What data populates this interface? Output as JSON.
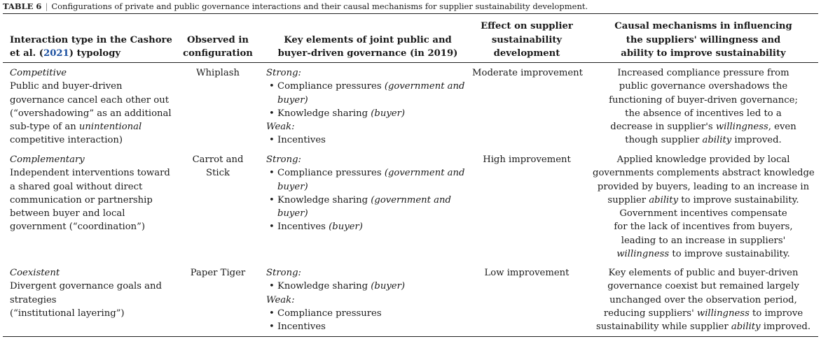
{
  "caption": {
    "label": "TABLE 6",
    "separator": "|",
    "text": "Configurations of private and public governance interactions and their causal mechanisms for supplier sustainability development."
  },
  "headers": {
    "c1": [
      "Interaction type in the Cashore",
      "et al. (",
      "2021",
      ") typology"
    ],
    "c2": [
      "Observed in",
      "configuration"
    ],
    "c3": [
      "Key elements of joint public and",
      "buyer-driven governance (in 2019)"
    ],
    "c4": [
      "Effect on supplier",
      "sustainability",
      "development"
    ],
    "c5": [
      "Causal mechanisms in influencing",
      "the suppliers' willingness and",
      "ability to improve sustainability"
    ]
  },
  "rows": [
    {
      "type_name": "Competitive",
      "type_lines": [
        "Public and buyer-driven",
        "governance cancel each other out",
        "(“overshadowing” as an additional",
        "sub-type of an ",
        "unintentional",
        "competitive interaction)"
      ],
      "configuration": [
        "Whiplash"
      ],
      "strong_label": "Strong",
      "weak_label": "Weak",
      "elements": {
        "compliance": "Compliance pressures",
        "compliance_note_a": "(government and",
        "compliance_note_b": "buyer)",
        "knowledge": "Knowledge sharing",
        "knowledge_note": "(buyer)",
        "incentives": "Incentives"
      },
      "effect": "Moderate improvement",
      "mechanism": [
        "Increased compliance pressure from",
        "public governance overshadows the",
        "functioning of buyer-driven governance;",
        "the absence of incentives led to a",
        "decrease in supplier's ",
        "willingness",
        ", even",
        "though supplier ",
        "ability",
        " improved."
      ]
    },
    {
      "type_name": "Complementary",
      "type_lines": [
        "Independent interventions toward",
        "a shared goal without direct",
        "communication or partnership",
        "between buyer and local",
        "government (“coordination”)"
      ],
      "configuration": [
        "Carrot and",
        "Stick"
      ],
      "strong_label": "Strong",
      "elements": {
        "compliance": "Compliance pressures",
        "compliance_note_a": "(government and",
        "compliance_note_b": "buyer)",
        "knowledge": "Knowledge sharing",
        "knowledge_note_a": "(government and",
        "knowledge_note_b": "buyer)",
        "incentives": "Incentives",
        "incentives_note": "(buyer)"
      },
      "effect": "High improvement",
      "mechanism": [
        "Applied knowledge provided by local",
        "governments complements abstract knowledge",
        "provided by buyers, leading to an increase in",
        "supplier ",
        "ability",
        " to improve sustainability.",
        "Government incentives compensate",
        "for the lack of incentives from buyers,",
        "leading to an increase in suppliers'",
        "willingness",
        " to improve sustainability."
      ]
    },
    {
      "type_name": "Coexistent",
      "type_lines": [
        "Divergent governance goals and",
        "strategies",
        "(“institutional layering”)"
      ],
      "configuration": [
        "Paper Tiger"
      ],
      "strong_label": "Strong",
      "weak_label": "Weak",
      "elements": {
        "knowledge": "Knowledge sharing",
        "knowledge_note": "(buyer)",
        "compliance": "Compliance pressures",
        "incentives": "Incentives"
      },
      "effect": "Low improvement",
      "mechanism": [
        "Key elements of public and buyer-driven",
        "governance coexist but remained largely",
        "unchanged over the observation period,",
        "reducing suppliers' ",
        "willingness",
        " to improve",
        "sustainability while supplier ",
        "ability",
        " improved."
      ]
    }
  ]
}
